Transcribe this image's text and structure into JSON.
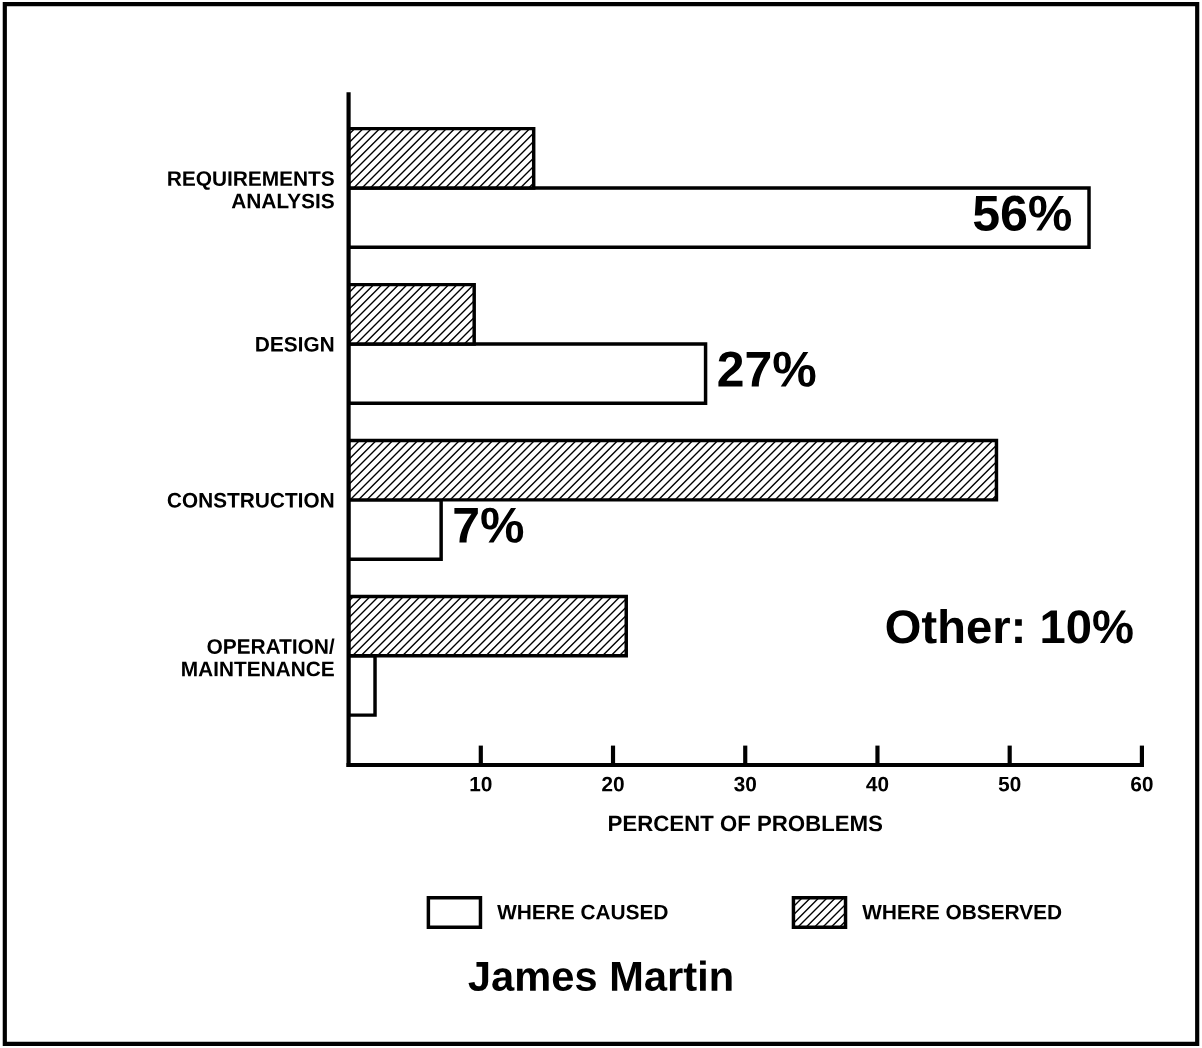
{
  "chart_data": {
    "type": "bar",
    "orientation": "horizontal",
    "categories": [
      "REQUIREMENTS\nANALYSIS",
      "DESIGN",
      "CONSTRUCTION",
      "OPERATION/\nMAINTENANCE"
    ],
    "series": [
      {
        "name": "WHERE CAUSED",
        "color": "#ffffff",
        "values": [
          56,
          27,
          7,
          2
        ],
        "value_labels": [
          "56%",
          "27%",
          "7%",
          null
        ]
      },
      {
        "name": "WHERE OBSERVED",
        "color": "#000000",
        "values": [
          14,
          9.5,
          49,
          21
        ]
      }
    ],
    "xlabel": "PERCENT OF PROBLEMS",
    "xlim": [
      0,
      60
    ],
    "xticks": [
      10,
      20,
      30,
      40,
      50,
      60
    ],
    "grid": false,
    "legend": "bottom",
    "annotations": [
      "Other: 10%",
      "James Martin"
    ]
  }
}
